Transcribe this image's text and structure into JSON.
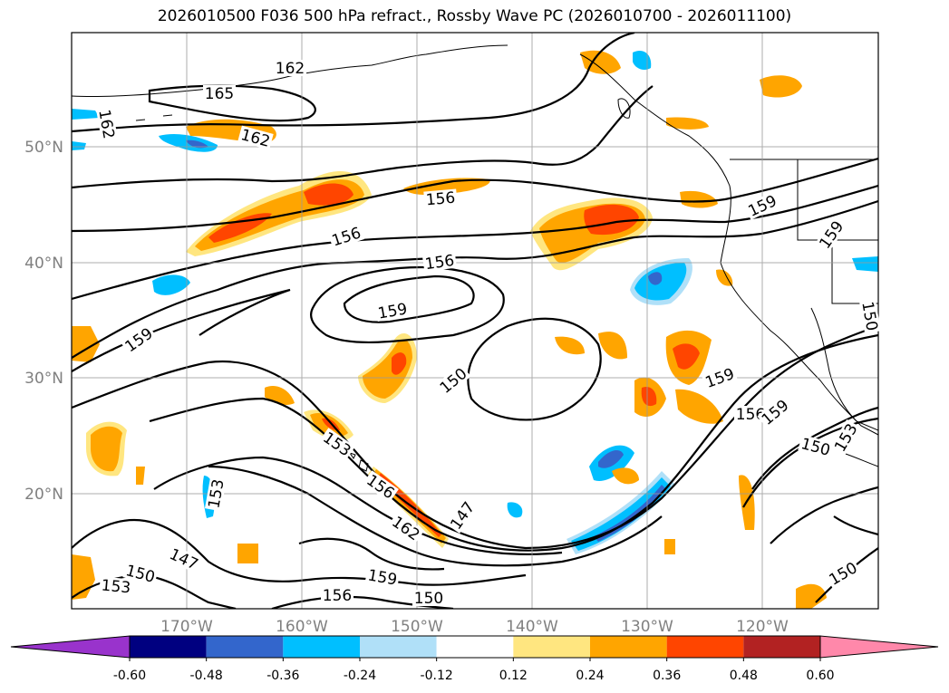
{
  "title": "2026010500 F036 500 hPa refract., Rossby Wave PC (2026010700 - 2026011100)",
  "latitude_labels": [
    "50°N",
    "40°N",
    "30°N",
    "20°N"
  ],
  "longitude_labels": [
    "170°W",
    "160°W",
    "150°W",
    "140°W",
    "130°W",
    "120°W"
  ],
  "contour_labels": [
    "162",
    "165",
    "162",
    "162",
    "156",
    "159",
    "156",
    "156",
    "159",
    "159",
    "150",
    "153",
    "156",
    "162",
    "147",
    "147",
    "150",
    "153",
    "159",
    "156",
    "156",
    "150",
    "159",
    "159",
    "153",
    "150",
    "150",
    "159",
    "153",
    "150"
  ],
  "colorbar": {
    "ticks": [
      "-0.60",
      "-0.48",
      "-0.36",
      "-0.24",
      "-0.12",
      "0.12",
      "0.24",
      "0.36",
      "0.48",
      "0.60"
    ],
    "colors": [
      "#9933cc",
      "#000080",
      "#3366cc",
      "#00bfff",
      "#b0e0f8",
      "#ffffff",
      "#ffe680",
      "#ffa500",
      "#ff4500",
      "#b22222",
      "#ff88aa"
    ]
  },
  "shading_colors": {
    "neg_light": "#b0e0f8",
    "neg_mid": "#00bfff",
    "neg_strong": "#3366cc",
    "pos_light": "#ffe680",
    "pos_mid": "#ffa500",
    "pos_strong": "#ff4500"
  }
}
